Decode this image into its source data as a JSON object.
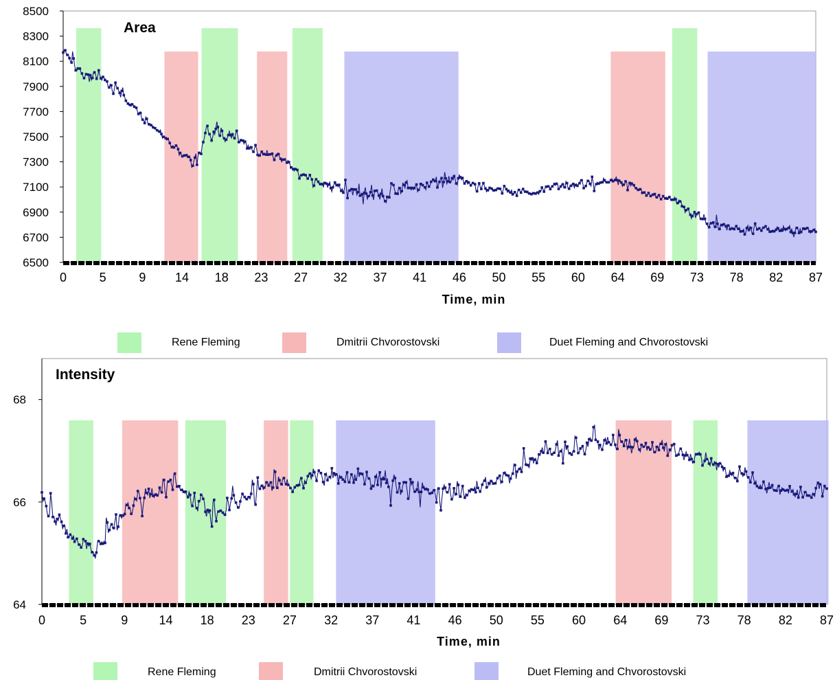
{
  "chart_data": [
    {
      "type": "line",
      "title": "Area",
      "xlabel": "Time, min",
      "ylabel": "",
      "xlim": [
        0,
        87
      ],
      "ylim": [
        6500,
        8500
      ],
      "x_tick_labels": [
        "0",
        "5",
        "9",
        "14",
        "18",
        "23",
        "27",
        "32",
        "37",
        "41",
        "46",
        "50",
        "55",
        "60",
        "64",
        "69",
        "73",
        "78",
        "82",
        "87"
      ],
      "y_tick_labels": [
        "6500",
        "6700",
        "6900",
        "7100",
        "7300",
        "7500",
        "7700",
        "7900",
        "8100",
        "8300",
        "8500"
      ],
      "y_ticks": [
        6500,
        6700,
        6900,
        7100,
        7300,
        7500,
        7700,
        7900,
        8100,
        8300,
        8500
      ],
      "shaded_regions": [
        {
          "performer": "Rene Fleming",
          "x_start": 1.5,
          "x_end": 4.4
        },
        {
          "performer": "Dmitrii Chvorostovski",
          "x_start": 11.7,
          "x_end": 15.6
        },
        {
          "performer": "Rene Fleming",
          "x_start": 16.0,
          "x_end": 20.2
        },
        {
          "performer": "Dmitrii Chvorostovski",
          "x_start": 22.4,
          "x_end": 25.9
        },
        {
          "performer": "Rene Fleming",
          "x_start": 26.5,
          "x_end": 30.0
        },
        {
          "performer": "Duet Fleming and Chvorostovski",
          "x_start": 32.5,
          "x_end": 45.7
        },
        {
          "performer": "Dmitrii Chvorostovski",
          "x_start": 63.3,
          "x_end": 69.6
        },
        {
          "performer": "Rene Fleming",
          "x_start": 70.4,
          "x_end": 73.3
        },
        {
          "performer": "Duet Fleming and Chvorostovski",
          "x_start": 74.5,
          "x_end": 87.0
        }
      ],
      "series": [
        {
          "trend": [
            [
              0,
              8200
            ],
            [
              2,
              8000
            ],
            [
              4,
              7950
            ],
            [
              6,
              7880
            ],
            [
              8,
              7750
            ],
            [
              10,
              7600
            ],
            [
              12,
              7480
            ],
            [
              14,
              7350
            ],
            [
              15.5,
              7300
            ],
            [
              16.5,
              7550
            ],
            [
              18,
              7530
            ],
            [
              20,
              7480
            ],
            [
              22,
              7400
            ],
            [
              24,
              7350
            ],
            [
              26,
              7300
            ],
            [
              28,
              7180
            ],
            [
              30,
              7130
            ],
            [
              32,
              7080
            ],
            [
              36,
              7050
            ],
            [
              40,
              7100
            ],
            [
              44,
              7150
            ],
            [
              46,
              7150
            ],
            [
              50,
              7080
            ],
            [
              54,
              7050
            ],
            [
              58,
              7120
            ],
            [
              62,
              7120
            ],
            [
              64,
              7150
            ],
            [
              66,
              7080
            ],
            [
              69,
              7020
            ],
            [
              71,
              6980
            ],
            [
              73,
              6880
            ],
            [
              75,
              6800
            ],
            [
              78,
              6760
            ],
            [
              82,
              6760
            ],
            [
              87,
              6760
            ]
          ],
          "noise": [
            [
              0,
              120
            ],
            [
              5,
              100
            ],
            [
              10,
              60
            ],
            [
              14,
              80
            ],
            [
              16,
              140
            ],
            [
              20,
              110
            ],
            [
              24,
              60
            ],
            [
              30,
              60
            ],
            [
              33,
              120
            ],
            [
              45,
              120
            ],
            [
              50,
              60
            ],
            [
              60,
              70
            ],
            [
              64,
              80
            ],
            [
              70,
              60
            ],
            [
              73,
              80
            ],
            [
              87,
              80
            ]
          ]
        }
      ]
    },
    {
      "type": "line",
      "title": "Intensity",
      "xlabel": "Time, min",
      "ylabel": "",
      "xlim": [
        0,
        87
      ],
      "ylim": [
        64,
        68.8
      ],
      "x_tick_labels": [
        "0",
        "5",
        "9",
        "14",
        "18",
        "23",
        "27",
        "32",
        "37",
        "41",
        "46",
        "50",
        "55",
        "60",
        "64",
        "69",
        "73",
        "78",
        "82",
        "87"
      ],
      "y_tick_labels": [
        "64",
        "66",
        "68"
      ],
      "y_ticks": [
        64,
        66,
        68
      ],
      "shaded_regions": [
        {
          "performer": "Rene Fleming",
          "x_start": 3.0,
          "x_end": 5.7
        },
        {
          "performer": "Dmitrii Chvorostovski",
          "x_start": 8.9,
          "x_end": 15.1
        },
        {
          "performer": "Rene Fleming",
          "x_start": 15.9,
          "x_end": 20.4
        },
        {
          "performer": "Dmitrii Chvorostovski",
          "x_start": 24.6,
          "x_end": 27.3
        },
        {
          "performer": "Rene Fleming",
          "x_start": 27.5,
          "x_end": 30.1
        },
        {
          "performer": "Duet Fleming and Chvorostovski",
          "x_start": 32.6,
          "x_end": 43.6
        },
        {
          "performer": "Dmitrii Chvorostovski",
          "x_start": 63.6,
          "x_end": 69.8
        },
        {
          "performer": "Rene Fleming",
          "x_start": 72.2,
          "x_end": 74.9
        },
        {
          "performer": "Duet Fleming and Chvorostovski",
          "x_start": 78.2,
          "x_end": 87.2
        }
      ],
      "series": [
        {
          "trend": [
            [
              0,
              66.2
            ],
            [
              1,
              65.7
            ],
            [
              3,
              65.4
            ],
            [
              4.5,
              65.1
            ],
            [
              6,
              65.1
            ],
            [
              8,
              65.5
            ],
            [
              9.5,
              65.9
            ],
            [
              12,
              66.1
            ],
            [
              14.5,
              66.4
            ],
            [
              16,
              66.1
            ],
            [
              18,
              65.9
            ],
            [
              20,
              65.8
            ],
            [
              22,
              66.0
            ],
            [
              24,
              66.2
            ],
            [
              26,
              66.4
            ],
            [
              28,
              66.3
            ],
            [
              30,
              66.5
            ],
            [
              33,
              66.5
            ],
            [
              37,
              66.4
            ],
            [
              41,
              66.3
            ],
            [
              45,
              66.2
            ],
            [
              48,
              66.2
            ],
            [
              50,
              66.4
            ],
            [
              53,
              66.7
            ],
            [
              56,
              67.0
            ],
            [
              60,
              67.1
            ],
            [
              63,
              67.2
            ],
            [
              66,
              67.1
            ],
            [
              69,
              67.0
            ],
            [
              72,
              66.9
            ],
            [
              75,
              66.7
            ],
            [
              78,
              66.5
            ],
            [
              80,
              66.3
            ],
            [
              84,
              66.2
            ],
            [
              87,
              66.2
            ]
          ],
          "noise": [
            [
              0,
              0.4
            ],
            [
              5,
              0.35
            ],
            [
              10,
              0.35
            ],
            [
              15,
              0.5
            ],
            [
              20,
              0.4
            ],
            [
              25,
              0.3
            ],
            [
              30,
              0.25
            ],
            [
              33,
              0.45
            ],
            [
              43,
              0.45
            ],
            [
              46,
              0.3
            ],
            [
              55,
              0.3
            ],
            [
              63,
              0.35
            ],
            [
              70,
              0.3
            ],
            [
              75,
              0.3
            ],
            [
              87,
              0.3
            ]
          ]
        }
      ]
    }
  ],
  "legend": [
    {
      "label": "Rene Fleming",
      "color": "#b3f5b3"
    },
    {
      "label": "Dmitrii Chvorostovski",
      "color": "#f7b7b7"
    },
    {
      "label": "Duet Fleming and Chvorostovski",
      "color": "#bcbcf5"
    }
  ],
  "colors": {
    "Rene Fleming": "#b3f5b3",
    "Dmitrii Chvorostovski": "#f7b7b7",
    "Duet Fleming and Chvorostovski": "#bcbcf5",
    "series": "#1a1a7a",
    "axis": "#000000"
  }
}
